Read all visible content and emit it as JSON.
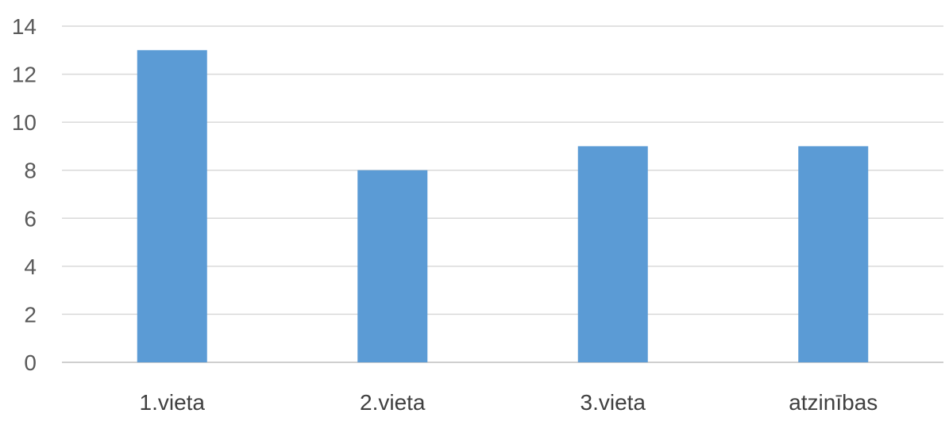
{
  "chart_data": {
    "type": "bar",
    "categories": [
      "1.vieta",
      "2.vieta",
      "3.vieta",
      "atzinības"
    ],
    "values": [
      13,
      8,
      9,
      9
    ],
    "title": "",
    "xlabel": "",
    "ylabel": "",
    "ylim": [
      0,
      14
    ],
    "yticks": [
      0,
      2,
      4,
      6,
      8,
      10,
      12,
      14
    ],
    "grid": true,
    "legend": "none",
    "colors": {
      "bar": "#5b9bd5",
      "grid": "#d9d9d9",
      "text": "#595959"
    }
  }
}
